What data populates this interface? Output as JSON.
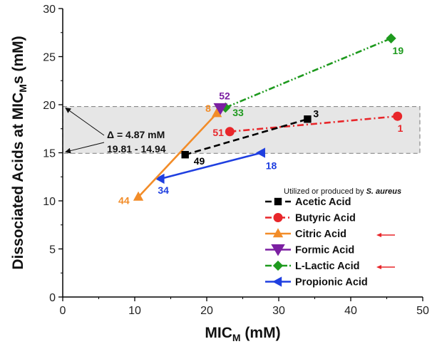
{
  "chart_data": {
    "type": "scatter",
    "title": "",
    "xlabel": "MIC",
    "xlabel_sub": "M",
    "xlabel_unit": " (mM)",
    "ylabel": "Dissociated Acids at MIC",
    "ylabel_sub": "M",
    "ylabel_tail": "s (mM)",
    "xlim": [
      0,
      50
    ],
    "ylim": [
      0,
      30
    ],
    "x_ticks": [
      "0",
      "10",
      "20",
      "30",
      "40",
      "50"
    ],
    "y_ticks": [
      "0",
      "5",
      "10",
      "15",
      "20",
      "25",
      "30"
    ],
    "legend_title": "Utilized or produced by S. aureus",
    "legend_position": "bottom-right",
    "band": {
      "low": 14.94,
      "high": 19.81,
      "color": "#e6e6e6"
    },
    "band_annotation": {
      "line1": "Δ = 4.87 mM",
      "line2": "19.81 - 14.94"
    },
    "series": [
      {
        "name": "Acetic Acid",
        "color": "#000000",
        "marker": "square",
        "dash": "dash",
        "x": [
          17.0,
          34.0
        ],
        "y": [
          14.8,
          18.5
        ],
        "labels": [
          "49",
          "3"
        ]
      },
      {
        "name": "Butyric Acid",
        "color": "#e8262a",
        "marker": "circle",
        "dash": "dashdot",
        "x": [
          23.2,
          46.5
        ],
        "y": [
          17.2,
          18.8
        ],
        "labels": [
          "51",
          "1"
        ]
      },
      {
        "name": "Citric Acid",
        "color": "#f28c28",
        "marker": "triangle-up",
        "dash": "solid",
        "x": [
          10.5,
          21.4
        ],
        "y": [
          10.4,
          19.1
        ],
        "labels": [
          "44",
          "8"
        ]
      },
      {
        "name": "Formic Acid",
        "color": "#7b1fa2",
        "marker": "triangle-down",
        "dash": "solid",
        "x": [
          21.9
        ],
        "y": [
          19.6
        ],
        "labels": [
          "52"
        ]
      },
      {
        "name": "L-Lactic Acid",
        "color": "#1e9a1e",
        "marker": "diamond",
        "dash": "dashdotdot",
        "x": [
          22.6,
          45.6
        ],
        "y": [
          19.7,
          26.9
        ],
        "labels": [
          "33",
          "19"
        ]
      },
      {
        "name": "Propionic Acid",
        "color": "#1f3fe0",
        "marker": "triangle-left",
        "dash": "solid",
        "x": [
          13.6,
          27.6
        ],
        "y": [
          12.3,
          15.0
        ],
        "labels": [
          "34",
          "18"
        ]
      }
    ],
    "highlight_arrows": [
      "Citric Acid",
      "L-Lactic Acid"
    ],
    "arrow_color": "#e8262a"
  }
}
